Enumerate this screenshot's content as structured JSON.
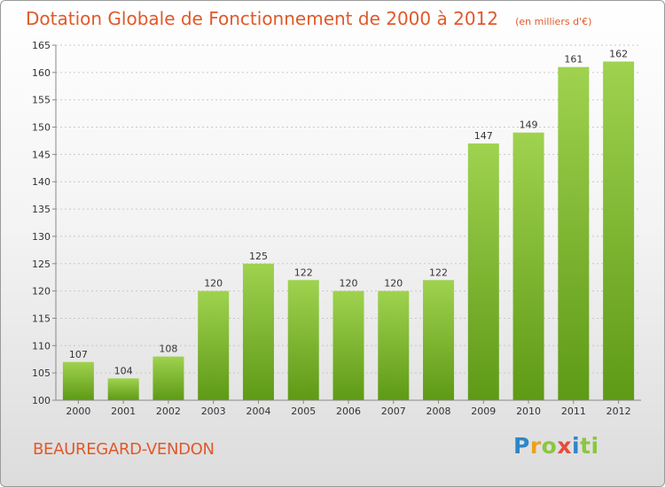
{
  "header": {
    "title": "Dotation Globale de Fonctionnement de 2000 à 2012",
    "subtitle": "(en milliers d'€)"
  },
  "footer": {
    "commune": "BEAUREGARD-VENDON",
    "logo_letters": [
      "P",
      "r",
      "o",
      "x",
      "i",
      "ti"
    ]
  },
  "chart_data": {
    "type": "bar",
    "title": "Dotation Globale de Fonctionnement de 2000 à 2012",
    "subtitle": "(en milliers d'€)",
    "categories": [
      "2000",
      "2001",
      "2002",
      "2003",
      "2004",
      "2005",
      "2006",
      "2007",
      "2008",
      "2009",
      "2010",
      "2011",
      "2012"
    ],
    "values": [
      107,
      104,
      108,
      120,
      125,
      122,
      120,
      120,
      122,
      147,
      149,
      161,
      162
    ],
    "ylim": [
      100,
      165
    ],
    "yticks": [
      100,
      105,
      110,
      115,
      120,
      125,
      130,
      135,
      140,
      145,
      150,
      155,
      160,
      165
    ],
    "grid": true,
    "bar_color_top": "#9fd24f",
    "bar_color_bottom": "#5e9a16"
  }
}
